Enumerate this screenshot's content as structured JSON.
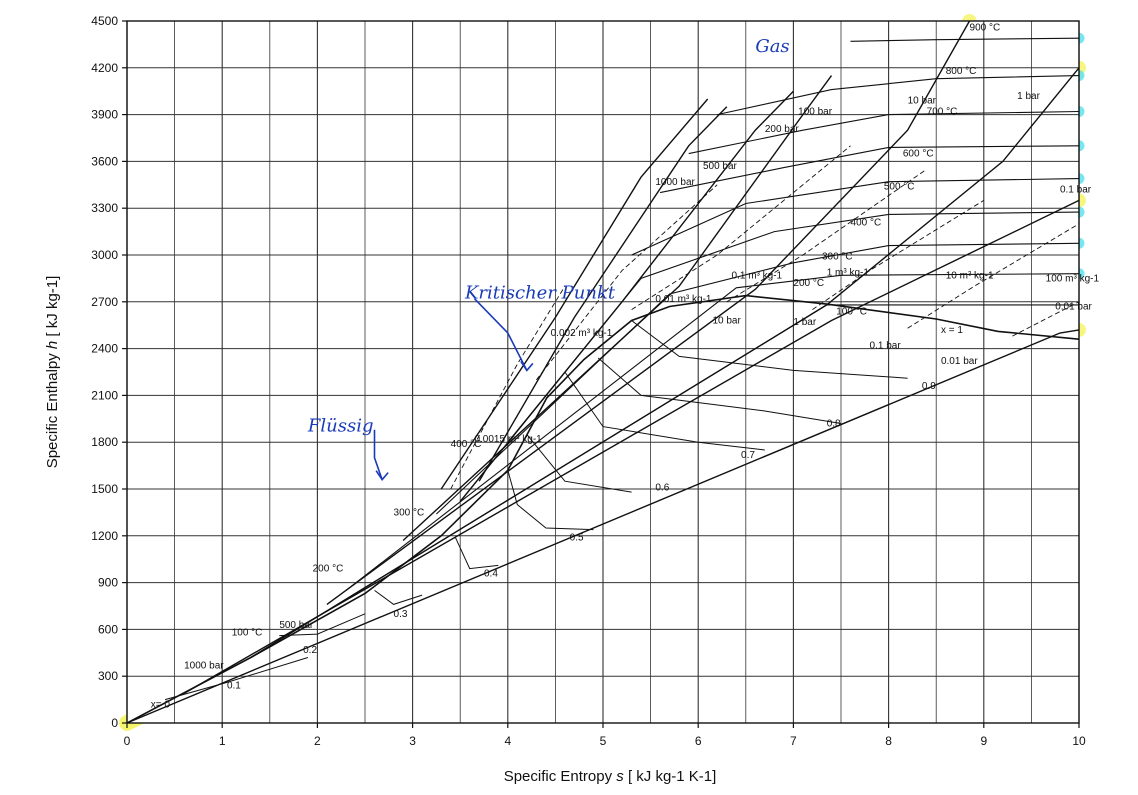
{
  "chart_data": {
    "type": "line",
    "title": "",
    "xlabel_prefix": "Specific Entropy ",
    "xlabel_symbol": "s",
    "xlabel_unit": "[ kJ kg-1 K-1]",
    "ylabel_prefix": "Specific Enthalpy ",
    "ylabel_symbol": "h",
    "ylabel_unit": "[ kJ kg-1]",
    "xlim": [
      0,
      10
    ],
    "ylim": [
      0,
      4500
    ],
    "x_ticks": [
      "0",
      "1",
      "2",
      "3",
      "4",
      "5",
      "6",
      "7",
      "8",
      "9",
      "10"
    ],
    "y_ticks": [
      "0",
      "300",
      "600",
      "900",
      "1200",
      "1500",
      "1800",
      "2100",
      "2400",
      "2700",
      "3000",
      "3300",
      "3600",
      "3900",
      "4200",
      "4500"
    ],
    "grid": true,
    "saturation_dome": {
      "liquid": [
        [
          0,
          0
        ],
        [
          1.3,
          420
        ],
        [
          2.5,
          830
        ],
        [
          3.3,
          1200
        ],
        [
          4.0,
          1620
        ],
        [
          4.41,
          2084
        ]
      ],
      "vapor": [
        [
          4.41,
          2084
        ],
        [
          4.8,
          2330
        ],
        [
          5.3,
          2580
        ],
        [
          5.7,
          2670
        ],
        [
          6.5,
          2740
        ],
        [
          7.35,
          2685
        ],
        [
          8.5,
          2590
        ],
        [
          9.15,
          2510
        ],
        [
          10,
          2460
        ]
      ]
    },
    "quality_lines": [
      {
        "label": "0.1",
        "points": [
          [
            0.4,
            150
          ],
          [
            1.05,
            260
          ],
          [
            1.9,
            420
          ]
        ]
      },
      {
        "label": "0.2",
        "points": [
          [
            1.6,
            560
          ],
          [
            2.0,
            570
          ],
          [
            2.5,
            700
          ]
        ]
      },
      {
        "label": "0.3",
        "points": [
          [
            2.6,
            850
          ],
          [
            2.8,
            760
          ],
          [
            3.1,
            820
          ]
        ]
      },
      {
        "label": "0.4",
        "points": [
          [
            3.45,
            1190
          ],
          [
            3.6,
            990
          ],
          [
            3.9,
            1010
          ]
        ]
      },
      {
        "label": "0.5",
        "points": [
          [
            4.0,
            1620
          ],
          [
            4.1,
            1400
          ],
          [
            4.4,
            1250
          ],
          [
            4.9,
            1240
          ]
        ]
      },
      {
        "label": "0.6",
        "points": [
          [
            4.2,
            1850
          ],
          [
            4.6,
            1550
          ],
          [
            5.3,
            1480
          ]
        ]
      },
      {
        "label": "0.7",
        "points": [
          [
            4.6,
            2250
          ],
          [
            5.0,
            1900
          ],
          [
            6.0,
            1800
          ],
          [
            6.7,
            1750
          ]
        ]
      },
      {
        "label": "0.8",
        "points": [
          [
            4.95,
            2340
          ],
          [
            5.4,
            2100
          ],
          [
            6.7,
            2000
          ],
          [
            7.5,
            1920
          ]
        ]
      },
      {
        "label": "0.9",
        "points": [
          [
            5.3,
            2580
          ],
          [
            5.8,
            2350
          ],
          [
            7.0,
            2260
          ],
          [
            8.2,
            2210
          ]
        ]
      }
    ],
    "isobars": [
      {
        "label": "0.01 bar",
        "points": [
          [
            0,
            0
          ],
          [
            9.8,
            2500
          ],
          [
            10,
            2520
          ]
        ]
      },
      {
        "label": "0.1 bar",
        "points": [
          [
            0.6,
            190
          ],
          [
            7.4,
            2580
          ],
          [
            10,
            3350
          ]
        ]
      },
      {
        "label": "1 bar",
        "points": [
          [
            1.3,
            420
          ],
          [
            7.35,
            2680
          ],
          [
            9.2,
            3600
          ],
          [
            10,
            4200
          ]
        ]
      },
      {
        "label": "10 bar",
        "points": [
          [
            2.1,
            760
          ],
          [
            6.6,
            2780
          ],
          [
            8.2,
            3800
          ],
          [
            8.85,
            4500
          ]
        ]
      },
      {
        "label": "100 bar",
        "points": [
          [
            2.9,
            1170
          ],
          [
            5.8,
            2800
          ],
          [
            7.1,
            3900
          ],
          [
            7.4,
            4150
          ]
        ]
      },
      {
        "label": "200 bar",
        "points": [
          [
            3.5,
            1420
          ],
          [
            5.2,
            2700
          ],
          [
            6.6,
            3800
          ],
          [
            7.0,
            4050
          ]
        ]
      },
      {
        "label": "500 bar",
        "points": [
          [
            3.7,
            1550
          ],
          [
            4.7,
            2600
          ],
          [
            5.9,
            3700
          ],
          [
            6.3,
            3950
          ]
        ]
      },
      {
        "label": "1000 bar",
        "points": [
          [
            3.3,
            1500
          ],
          [
            4.5,
            2600
          ],
          [
            5.4,
            3500
          ],
          [
            6.1,
            4000
          ]
        ]
      }
    ],
    "isotherms": [
      {
        "label": "100 °C",
        "points": [
          [
            1.3,
            420
          ],
          [
            7.35,
            2680
          ],
          [
            10,
            2680
          ]
        ]
      },
      {
        "label": "200 °C",
        "points": [
          [
            2.3,
            850
          ],
          [
            6.4,
            2790
          ],
          [
            7.5,
            2870
          ],
          [
            10,
            2880
          ]
        ]
      },
      {
        "label": "300 °C",
        "points": [
          [
            3.25,
            1340
          ],
          [
            5.7,
            2750
          ],
          [
            7.0,
            2950
          ],
          [
            8.0,
            3060
          ],
          [
            10,
            3075
          ]
        ]
      },
      {
        "label": "400 °C",
        "points": [
          [
            4.0,
            1800
          ],
          [
            5.4,
            2850
          ],
          [
            6.8,
            3150
          ],
          [
            8.0,
            3260
          ],
          [
            10,
            3275
          ]
        ]
      },
      {
        "label": "500 °C",
        "points": [
          [
            5.3,
            3000
          ],
          [
            6.5,
            3330
          ],
          [
            8.0,
            3470
          ],
          [
            10,
            3490
          ]
        ]
      },
      {
        "label": "600 °C",
        "points": [
          [
            5.6,
            3400
          ],
          [
            6.9,
            3560
          ],
          [
            8.0,
            3690
          ],
          [
            10,
            3700
          ]
        ]
      },
      {
        "label": "700 °C",
        "points": [
          [
            5.9,
            3650
          ],
          [
            7.1,
            3800
          ],
          [
            8.0,
            3900
          ],
          [
            10,
            3920
          ]
        ]
      },
      {
        "label": "800 °C",
        "points": [
          [
            6.2,
            3900
          ],
          [
            7.4,
            4060
          ],
          [
            8.5,
            4130
          ],
          [
            10,
            4150
          ]
        ]
      },
      {
        "label": "900 °C",
        "points": [
          [
            7.6,
            4370
          ],
          [
            8.5,
            4380
          ],
          [
            10,
            4390
          ]
        ]
      }
    ],
    "isochores": [
      {
        "label": "0.0015 m³ kg-1",
        "points": [
          [
            3.4,
            1500
          ],
          [
            4.1,
            2300
          ],
          [
            4.6,
            2800
          ]
        ]
      },
      {
        "label": "0.002 m³ kg-1",
        "points": [
          [
            4.3,
            2200
          ],
          [
            5.2,
            2900
          ],
          [
            6.2,
            3450
          ]
        ]
      },
      {
        "label": "0.01 m³ kg-1",
        "points": [
          [
            5.3,
            2650
          ],
          [
            6.2,
            3000
          ],
          [
            7.6,
            3700
          ]
        ]
      },
      {
        "label": "0.1 m³ kg-1",
        "points": [
          [
            6.3,
            2700
          ],
          [
            7.1,
            3000
          ],
          [
            8.4,
            3550
          ]
        ]
      },
      {
        "label": "1 m³ kg-1",
        "points": [
          [
            7.2,
            2650
          ],
          [
            7.8,
            2900
          ],
          [
            9.0,
            3350
          ]
        ]
      },
      {
        "label": "10 m³ kg-1",
        "points": [
          [
            8.2,
            2530
          ],
          [
            8.9,
            2800
          ],
          [
            10,
            3200
          ]
        ]
      },
      {
        "label": "100 m³ kg-1",
        "points": [
          [
            9.3,
            2480
          ],
          [
            10,
            2700
          ]
        ]
      }
    ],
    "annotations": [
      {
        "text": "900 °C",
        "x": 8.85,
        "y": 4440
      },
      {
        "text": "800 °C",
        "x": 8.6,
        "y": 4160
      },
      {
        "text": "700 °C",
        "x": 8.4,
        "y": 3900
      },
      {
        "text": "600 °C",
        "x": 8.15,
        "y": 3630
      },
      {
        "text": "500 °C",
        "x": 7.95,
        "y": 3420
      },
      {
        "text": "400 °C",
        "x": 7.6,
        "y": 3190
      },
      {
        "text": "300 °C",
        "x": 7.3,
        "y": 2970
      },
      {
        "text": "200 °C",
        "x": 7.0,
        "y": 2800
      },
      {
        "text": "100 °C",
        "x": 7.45,
        "y": 2620
      },
      {
        "text": "400 °C",
        "x": 3.4,
        "y": 1770
      },
      {
        "text": "300 °C",
        "x": 2.8,
        "y": 1330
      },
      {
        "text": "200 °C",
        "x": 1.95,
        "y": 970
      },
      {
        "text": "100 °C",
        "x": 1.1,
        "y": 560
      },
      {
        "text": "1000 bar",
        "x": 0.6,
        "y": 350
      },
      {
        "text": "500 bar",
        "x": 1.6,
        "y": 610
      },
      {
        "text": "1000 bar",
        "x": 5.55,
        "y": 3450
      },
      {
        "text": "500 bar",
        "x": 6.05,
        "y": 3550
      },
      {
        "text": "200 bar",
        "x": 6.7,
        "y": 3790
      },
      {
        "text": "100 bar",
        "x": 7.05,
        "y": 3900
      },
      {
        "text": "10 bar",
        "x": 8.2,
        "y": 3970
      },
      {
        "text": "1 bar",
        "x": 9.35,
        "y": 4000
      },
      {
        "text": "10 bar",
        "x": 6.15,
        "y": 2560
      },
      {
        "text": "1 bar",
        "x": 7.0,
        "y": 2550
      },
      {
        "text": "0.1 bar",
        "x": 7.8,
        "y": 2400
      },
      {
        "text": "0.01 bar",
        "x": 8.55,
        "y": 2300
      },
      {
        "text": "0.1 bar",
        "x": 9.8,
        "y": 3400
      },
      {
        "text": "0.01 bar",
        "x": 9.75,
        "y": 2650
      },
      {
        "text": "x = 1",
        "x": 8.55,
        "y": 2500
      },
      {
        "text": "0.9",
        "x": 8.35,
        "y": 2140
      },
      {
        "text": "0.8",
        "x": 7.35,
        "y": 1900
      },
      {
        "text": "0.7",
        "x": 6.45,
        "y": 1700
      },
      {
        "text": "0.6",
        "x": 5.55,
        "y": 1490
      },
      {
        "text": "0.5",
        "x": 4.65,
        "y": 1170
      },
      {
        "text": "0.4",
        "x": 3.75,
        "y": 940
      },
      {
        "text": "0.3",
        "x": 2.8,
        "y": 680
      },
      {
        "text": "0.2",
        "x": 1.85,
        "y": 450
      },
      {
        "text": "0.1",
        "x": 1.05,
        "y": 220
      },
      {
        "text": "0.01 m³ kg-1",
        "x": 5.55,
        "y": 2700
      },
      {
        "text": "0.1 m³ kg-1",
        "x": 6.35,
        "y": 2850
      },
      {
        "text": "1 m³ kg-1",
        "x": 7.35,
        "y": 2870
      },
      {
        "text": "10 m³ kg-1",
        "x": 8.6,
        "y": 2850
      },
      {
        "text": "100 m³ kg-1",
        "x": 9.65,
        "y": 2830
      },
      {
        "text": "0.0015 m³ kg-1",
        "x": 3.65,
        "y": 1800
      },
      {
        "text": "0.002 m³ kg-1",
        "x": 4.45,
        "y": 2480
      },
      {
        "text": "x= 0",
        "x": 0.25,
        "y": 100
      }
    ],
    "handwritten_notes": [
      {
        "text": "Gas",
        "x": 6.6,
        "y": 4300
      },
      {
        "text": "Kritischer Punkt",
        "x": 3.55,
        "y": 2720
      },
      {
        "text": "Flüssig",
        "x": 1.9,
        "y": 1870
      }
    ],
    "highlight_colors": {
      "liquid_and_mixture": "#f4f56a",
      "gas": "#5fe2ec",
      "annotations": "#1a3bb8"
    }
  }
}
